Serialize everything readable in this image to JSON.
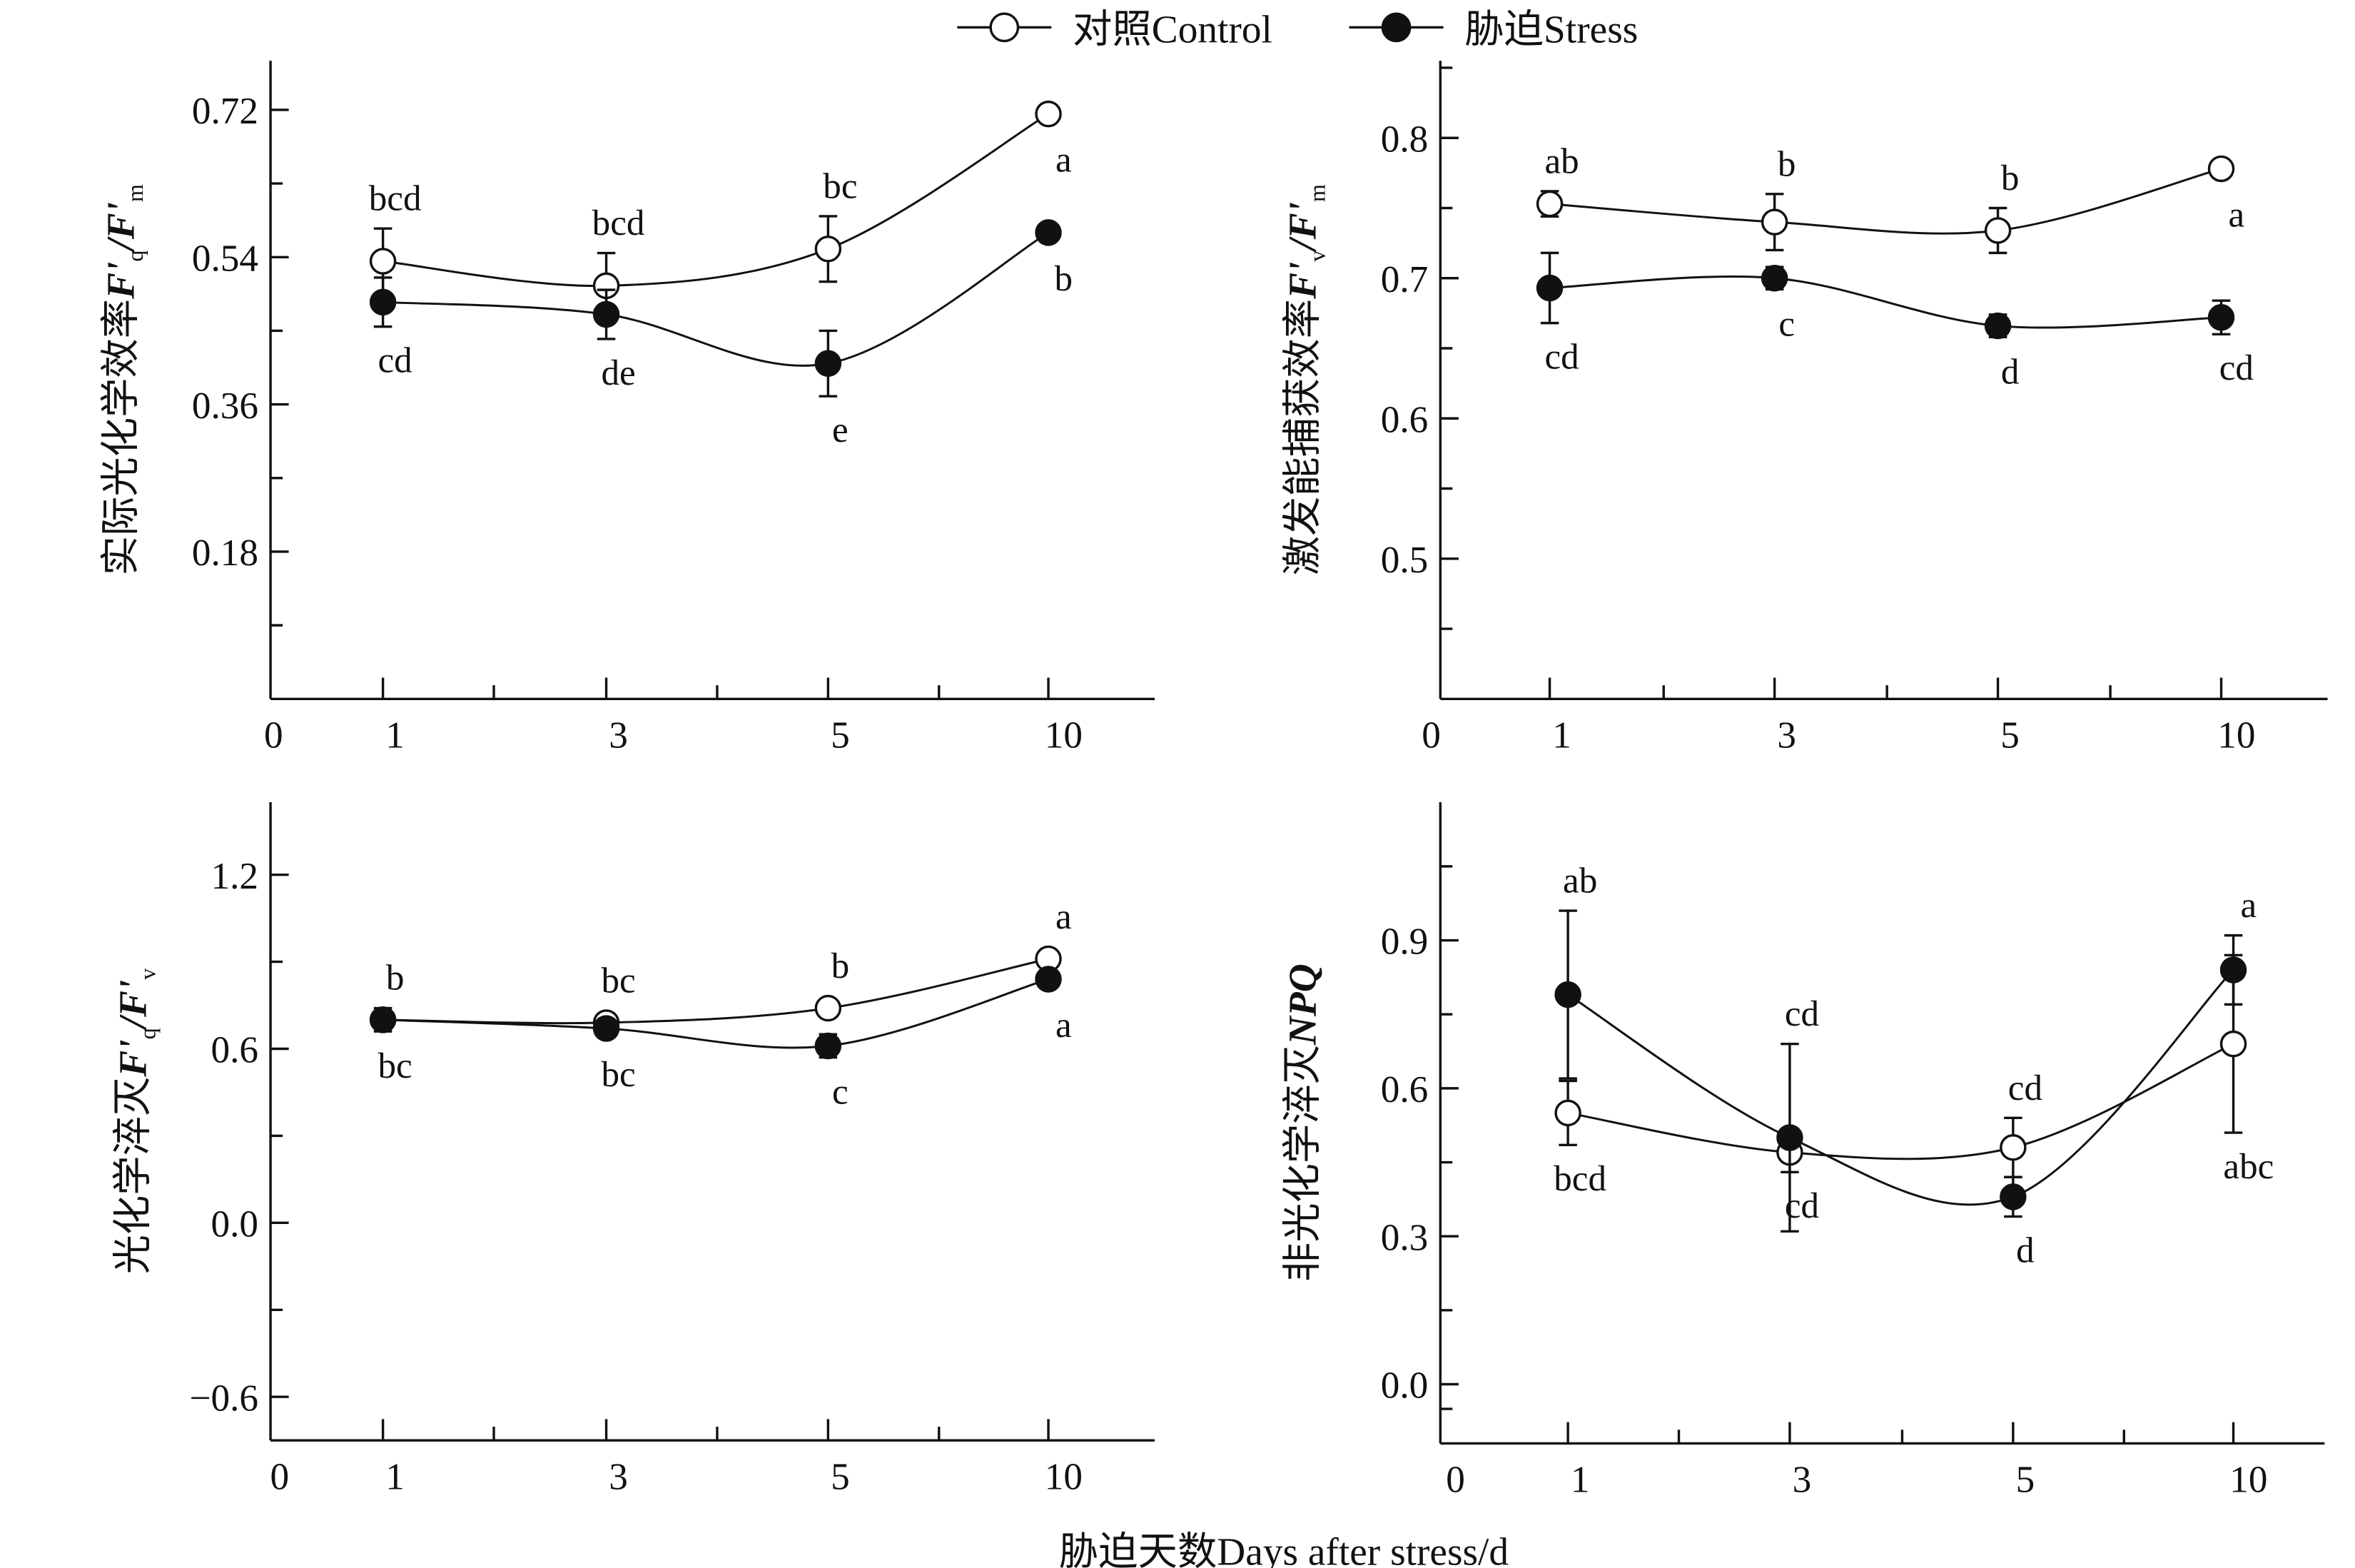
{
  "legend": {
    "items": [
      {
        "label": "对照Control",
        "marker": "open-circle"
      },
      {
        "label": "胁迫Stress",
        "marker": "filled-circle"
      }
    ]
  },
  "xlabel": "胁迫天数Days after stress/d",
  "chart_data": [
    {
      "type": "line",
      "id": "fqfm",
      "ylabel_cn": "实际光化学效率",
      "ylabel_sym": "F'",
      "ylabel_sub1": "q",
      "ylabel_mid": "/F'",
      "ylabel_sub2": "m",
      "categories": [
        "1",
        "3",
        "5",
        "10"
      ],
      "x_origin_label": "0",
      "ylim": [
        0,
        0.78
      ],
      "yticks": [
        0.18,
        0.36,
        0.54,
        0.72
      ],
      "ytick_labels": [
        "0.18",
        "0.36",
        "0.54",
        "0.72"
      ],
      "yminor": [
        0.09,
        0.27,
        0.45,
        0.63
      ],
      "grid": false,
      "series": [
        {
          "name": "对照Control",
          "marker": "open",
          "values": [
            0.535,
            0.505,
            0.55,
            0.715
          ],
          "err": [
            0.04,
            0.04,
            0.04,
            0.01
          ],
          "sig": [
            "bcd",
            "bcd",
            "bc",
            "a"
          ],
          "sig_pos": [
            "above",
            "above",
            "above",
            "below"
          ]
        },
        {
          "name": "胁迫Stress",
          "marker": "filled",
          "values": [
            0.485,
            0.47,
            0.41,
            0.57
          ],
          "err": [
            0.03,
            0.03,
            0.04,
            0.01
          ],
          "sig": [
            "cd",
            "de",
            "e",
            "b"
          ],
          "sig_pos": [
            "below",
            "below",
            "below",
            "below"
          ]
        }
      ]
    },
    {
      "type": "line",
      "id": "fvfm",
      "ylabel_cn": "激发能捕获效率",
      "ylabel_sym": "F'",
      "ylabel_sub1": "v",
      "ylabel_mid": "/F'",
      "ylabel_sub2": "m",
      "categories": [
        "1",
        "3",
        "5",
        "10"
      ],
      "x_origin_label": "0",
      "ylim": [
        0.4,
        0.855
      ],
      "yticks": [
        0.5,
        0.6,
        0.7,
        0.8
      ],
      "ytick_labels": [
        "0.5",
        "0.6",
        "0.7",
        "0.8"
      ],
      "yminor": [
        0.45,
        0.55,
        0.65,
        0.75,
        0.85
      ],
      "grid": false,
      "series": [
        {
          "name": "对照Control",
          "marker": "open",
          "values": [
            0.753,
            0.74,
            0.734,
            0.778
          ],
          "err": [
            0.009,
            0.02,
            0.016,
            0.005
          ],
          "sig": [
            "ab",
            "b",
            "b",
            "a"
          ],
          "sig_pos": [
            "above",
            "above",
            "above",
            "below"
          ]
        },
        {
          "name": "胁迫Stress",
          "marker": "filled",
          "values": [
            0.693,
            0.7,
            0.666,
            0.672
          ],
          "err": [
            0.025,
            0.008,
            0.008,
            0.012
          ],
          "sig": [
            "cd",
            "c",
            "d",
            "cd"
          ],
          "sig_pos": [
            "below",
            "below",
            "below",
            "below"
          ]
        }
      ]
    },
    {
      "type": "line",
      "id": "fqfv",
      "ylabel_cn": "光化学淬灭",
      "ylabel_sym": "F'",
      "ylabel_sub1": "q",
      "ylabel_mid": "/F'",
      "ylabel_sub2": "v",
      "categories": [
        "1",
        "3",
        "5",
        "10"
      ],
      "x_origin_label": "0",
      "ylim": [
        -0.75,
        1.45
      ],
      "yticks": [
        -0.6,
        0.0,
        0.6,
        1.2
      ],
      "ytick_labels": [
        "−0.6",
        "0.0",
        "0.6",
        "1.2"
      ],
      "yminor": [
        -0.3,
        0.3,
        0.9
      ],
      "grid": false,
      "series": [
        {
          "name": "对照Control",
          "marker": "open",
          "values": [
            0.7,
            0.69,
            0.74,
            0.91
          ],
          "err": [
            0.02,
            0.03,
            0.02,
            0.02
          ],
          "sig": [
            "b",
            "bc",
            "b",
            "a"
          ],
          "sig_pos": [
            "above",
            "above",
            "above",
            "above"
          ]
        },
        {
          "name": "胁迫Stress",
          "marker": "filled",
          "values": [
            0.7,
            0.67,
            0.61,
            0.84
          ],
          "err": [
            0.04,
            0.03,
            0.04,
            0.02
          ],
          "sig": [
            "bc",
            "bc",
            "c",
            "a"
          ],
          "sig_pos": [
            "below",
            "below",
            "below",
            "below"
          ]
        }
      ]
    },
    {
      "type": "line",
      "id": "npq",
      "ylabel_cn": "非光化学淬灭",
      "ylabel_sym": "NPQ",
      "ylabel_sub1": "",
      "ylabel_mid": "",
      "ylabel_sub2": "",
      "categories": [
        "1",
        "3",
        "5",
        "10"
      ],
      "x_origin_label": "0",
      "ylim": [
        -0.12,
        1.18
      ],
      "yticks": [
        0.0,
        0.3,
        0.6,
        0.9
      ],
      "ytick_labels": [
        "0.0",
        "0.3",
        "0.6",
        "0.9"
      ],
      "yminor": [
        -0.05,
        0.15,
        0.45,
        0.75,
        1.05
      ],
      "grid": false,
      "series": [
        {
          "name": "对照Control",
          "marker": "open",
          "values": [
            0.55,
            0.47,
            0.48,
            0.69
          ],
          "err": [
            0.065,
            0.04,
            0.06,
            0.18
          ],
          "sig": [
            "bcd",
            "cd",
            "cd",
            "abc"
          ],
          "sig_pos": [
            "below",
            "below",
            "above",
            "below"
          ]
        },
        {
          "name": "胁迫Stress",
          "marker": "filled",
          "values": [
            0.79,
            0.5,
            0.38,
            0.84
          ],
          "err": [
            0.17,
            0.19,
            0.04,
            0.07
          ],
          "sig": [
            "ab",
            "cd",
            "d",
            "a"
          ],
          "sig_pos": [
            "above",
            "above",
            "below",
            "above"
          ]
        }
      ]
    }
  ]
}
